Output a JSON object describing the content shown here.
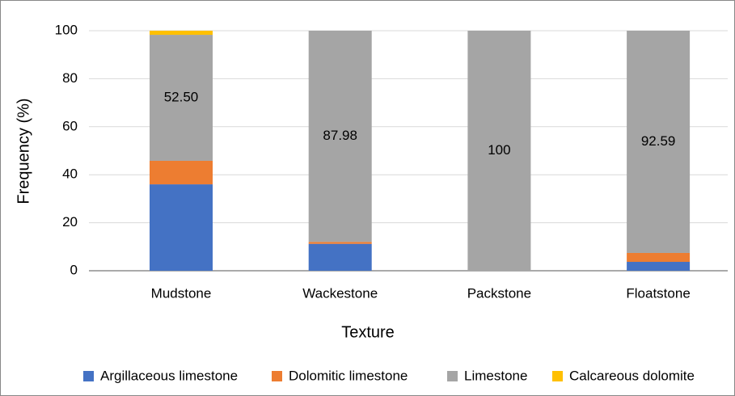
{
  "chart_data": {
    "type": "stacked-bar",
    "x_label": "Texture",
    "y_label": "Frequency (%)",
    "categories": [
      "Mudstone",
      "Wackestone",
      "Packstone",
      "Floatstone"
    ],
    "series": [
      {
        "name": "Argillaceous limestone",
        "color": "#4472c4",
        "values": [
          36.0,
          11.2,
          0,
          3.7
        ]
      },
      {
        "name": "Dolomitic limestone",
        "color": "#ed7d31",
        "values": [
          9.8,
          0.82,
          0,
          3.71
        ]
      },
      {
        "name": "Limestone",
        "color": "#a5a5a5",
        "values": [
          52.5,
          87.98,
          100,
          92.59
        ],
        "value_labels": [
          "52.50",
          "87.98",
          "100",
          "92.59"
        ]
      },
      {
        "name": "Calcareous dolomite",
        "color": "#ffc000",
        "values": [
          1.7,
          0,
          0,
          0
        ]
      }
    ],
    "ylim": [
      0,
      100
    ],
    "yticks": [
      0,
      20,
      40,
      60,
      80,
      100
    ],
    "grid": true,
    "legend": "bottom"
  }
}
